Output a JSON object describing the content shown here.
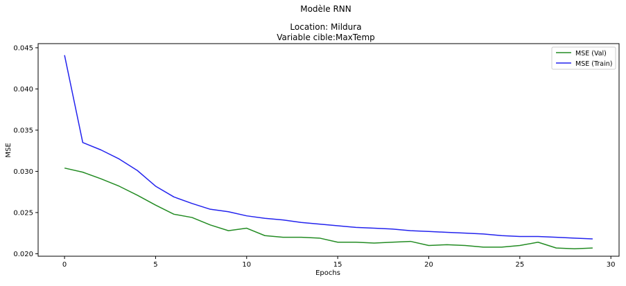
{
  "chart_data": {
    "type": "line",
    "title_lines": [
      "Modèle RNN",
      "Location: Mildura",
      "Variable cible:MaxTemp"
    ],
    "xlabel": "Epochs",
    "ylabel": "MSE",
    "xlim": [
      -1.45,
      30.45
    ],
    "ylim": [
      0.0197,
      0.0455
    ],
    "xticks": [
      0,
      5,
      10,
      15,
      20,
      25,
      30
    ],
    "yticks": [
      0.02,
      0.025,
      0.03,
      0.035,
      0.04,
      0.045
    ],
    "ytick_labels": [
      "0.020",
      "0.025",
      "0.030",
      "0.035",
      "0.040",
      "0.045"
    ],
    "legend_position": "upper right",
    "x": [
      0,
      1,
      2,
      3,
      4,
      5,
      6,
      7,
      8,
      9,
      10,
      11,
      12,
      13,
      14,
      15,
      16,
      17,
      18,
      19,
      20,
      21,
      22,
      23,
      24,
      25,
      26,
      27,
      28,
      29
    ],
    "series": [
      {
        "name": "MSE (Val)",
        "color": "#228b22",
        "values": [
          0.0304,
          0.0299,
          0.0291,
          0.0282,
          0.0271,
          0.0259,
          0.0248,
          0.0244,
          0.0235,
          0.0228,
          0.0231,
          0.0222,
          0.022,
          0.022,
          0.0219,
          0.0214,
          0.0214,
          0.0213,
          0.0214,
          0.0215,
          0.021,
          0.0211,
          0.021,
          0.0208,
          0.0208,
          0.021,
          0.0214,
          0.0207,
          0.0206,
          0.0207
        ]
      },
      {
        "name": "MSE (Train)",
        "color": "#2222ee",
        "values": [
          0.0441,
          0.0335,
          0.0326,
          0.0315,
          0.0301,
          0.0282,
          0.0269,
          0.0261,
          0.0254,
          0.0251,
          0.0246,
          0.0243,
          0.0241,
          0.0238,
          0.0236,
          0.0234,
          0.0232,
          0.0231,
          0.023,
          0.0228,
          0.0227,
          0.0226,
          0.0225,
          0.0224,
          0.0222,
          0.0221,
          0.0221,
          0.022,
          0.0219,
          0.0218
        ]
      }
    ]
  }
}
